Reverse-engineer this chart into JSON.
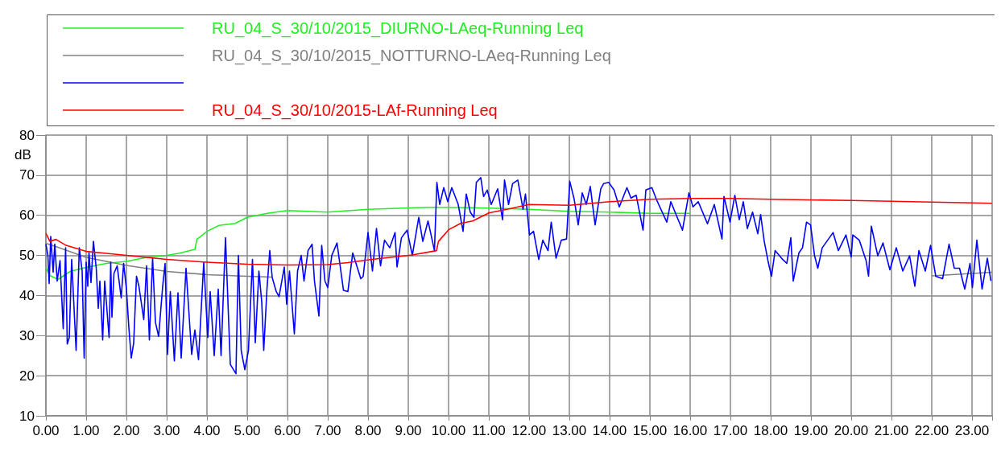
{
  "chart_data": {
    "type": "line",
    "ylabel": "dB",
    "legend": "top",
    "grid": true,
    "marker": "none",
    "line_style": "solid",
    "xlim": [
      0,
      23.5
    ],
    "ylim": [
      10,
      80
    ],
    "xticks": [
      {
        "value": 0,
        "label": "0.00"
      },
      {
        "value": 1,
        "label": "1.00"
      },
      {
        "value": 2,
        "label": "2.00"
      },
      {
        "value": 3,
        "label": "3.00"
      },
      {
        "value": 4,
        "label": "4.00"
      },
      {
        "value": 5,
        "label": "5.00"
      },
      {
        "value": 6,
        "label": "6.00"
      },
      {
        "value": 7,
        "label": "7.00"
      },
      {
        "value": 8,
        "label": "8.00"
      },
      {
        "value": 9,
        "label": "9.00"
      },
      {
        "value": 10,
        "label": "10.00"
      },
      {
        "value": 11,
        "label": "11.00"
      },
      {
        "value": 12,
        "label": "12.00"
      },
      {
        "value": 13,
        "label": "13.00"
      },
      {
        "value": 14,
        "label": "14.00"
      },
      {
        "value": 15,
        "label": "15.00"
      },
      {
        "value": 16,
        "label": "16.00"
      },
      {
        "value": 17,
        "label": "17.00"
      },
      {
        "value": 18,
        "label": "18.00"
      },
      {
        "value": 19,
        "label": "19.00"
      },
      {
        "value": 20,
        "label": "20.00"
      },
      {
        "value": 21,
        "label": "21.00"
      },
      {
        "value": 22,
        "label": "22.00"
      },
      {
        "value": 23,
        "label": "23.00"
      }
    ],
    "yticks": [
      10,
      20,
      30,
      40,
      50,
      60,
      70,
      80
    ],
    "series": [
      {
        "name": "RU_04_S_30/10/2015_DIURNO-LAeq-Running Leq",
        "color": "#22ee22",
        "x": [
          0,
          0.1,
          0.3,
          0.6,
          1,
          1.5,
          2,
          2.5,
          3,
          3.3,
          3.7,
          3.75,
          4,
          4.3,
          4.7,
          5,
          5.5,
          6,
          7,
          8,
          9.5,
          10,
          11,
          12,
          13,
          14,
          15,
          16
        ],
        "values": [
          47,
          45,
          44,
          46,
          47,
          48,
          48.5,
          49.5,
          50,
          50.5,
          51.5,
          54,
          56,
          57.5,
          58,
          59.5,
          60.5,
          61.2,
          60.8,
          61.5,
          62,
          62,
          61.8,
          61.5,
          61,
          60.8,
          60.5,
          60.5
        ]
      },
      {
        "name": "RU_04_S_30/10/2015_NOTTURNO-LAeq-Running Leq",
        "color": "#808080",
        "x": [
          0,
          0.3,
          1,
          2,
          3,
          4,
          5,
          5.6,
          5.7,
          22,
          23.5
        ],
        "values": [
          53,
          52,
          49.5,
          47.5,
          46,
          45.2,
          44.8,
          44.6,
          null,
          44.9,
          45.8
        ]
      },
      {
        "color": "#0000ff",
        "x": [
          0,
          0.05,
          0.08,
          0.12,
          0.18,
          0.22,
          0.28,
          0.35,
          0.43,
          0.49,
          0.53,
          0.58,
          0.64,
          0.75,
          0.83,
          0.9,
          0.95,
          1,
          1.04,
          1.07,
          1.12,
          1.18,
          1.25,
          1.3,
          1.34,
          1.41,
          1.46,
          1.57,
          1.61,
          1.64,
          1.69,
          1.77,
          1.87,
          1.93,
          2,
          2.06,
          2.12,
          2.18,
          2.25,
          2.31,
          2.43,
          2.5,
          2.57,
          2.65,
          2.72,
          2.8,
          2.9,
          2.96,
          3.02,
          3.09,
          3.19,
          3.28,
          3.36,
          3.48,
          3.62,
          3.7,
          3.79,
          3.92,
          4.02,
          4.08,
          4.18,
          4.28,
          4.35,
          4.46,
          4.58,
          4.72,
          4.78,
          4.85,
          4.94,
          5.03,
          5.13,
          5.2,
          5.29,
          5.36,
          5.41,
          5.49,
          5.56,
          5.62,
          5.72,
          5.79,
          5.92,
          5.98,
          6.05,
          6.17,
          6.25,
          6.34,
          6.41,
          6.51,
          6.61,
          6.67,
          6.78,
          6.85,
          6.93,
          7,
          7.1,
          7.23,
          7.39,
          7.5,
          7.62,
          7.82,
          7.88,
          8,
          8.11,
          8.21,
          8.31,
          8.41,
          8.54,
          8.67,
          8.72,
          8.83,
          8.97,
          9.1,
          9.26,
          9.36,
          9.49,
          9.65,
          9.71,
          9.78,
          9.88,
          9.98,
          10.08,
          10.24,
          10.36,
          10.44,
          10.54,
          10.63,
          10.69,
          10.8,
          10.87,
          10.96,
          11.06,
          11.22,
          11.34,
          11.39,
          11.49,
          11.59,
          11.72,
          11.85,
          11.91,
          12.01,
          12.11,
          12.24,
          12.34,
          12.47,
          12.55,
          12.67,
          12.8,
          12.93,
          13.01,
          13.12,
          13.22,
          13.32,
          13.42,
          13.52,
          13.64,
          13.78,
          13.85,
          13.98,
          14.11,
          14.24,
          14.43,
          14.53,
          14.66,
          14.83,
          14.9,
          15.05,
          15.16,
          15.42,
          15.52,
          15.65,
          15.81,
          15.97,
          16.07,
          16.2,
          16.43,
          16.6,
          16.79,
          16.84,
          16.99,
          17.11,
          17.22,
          17.32,
          17.42,
          17.55,
          17.68,
          17.75,
          17.84,
          17.94,
          18.02,
          18.11,
          18.27,
          18.4,
          18.5,
          18.56,
          18.7,
          18.79,
          18.89,
          18.99,
          19.09,
          19.17,
          19.28,
          19.55,
          19.68,
          19.87,
          20,
          20.04,
          20.2,
          20.37,
          20.43,
          20.5,
          20.66,
          20.79,
          20.96,
          21.12,
          21.28,
          21.45,
          21.58,
          21.68,
          21.84,
          21.97,
          22.1,
          22.27,
          22.43,
          22.56,
          22.69,
          22.82,
          22.95,
          23.01,
          23.12,
          23.25,
          23.38,
          23.47
        ],
        "values": [
          52.8,
          50,
          43,
          54.7,
          45.8,
          52.8,
          43.6,
          48.7,
          31.7,
          51.9,
          27.9,
          29.5,
          49,
          26.3,
          51.9,
          46.1,
          24.4,
          48.3,
          42.3,
          50.6,
          43.2,
          53.5,
          46.8,
          36.8,
          43.6,
          28.9,
          43.6,
          29.5,
          48.3,
          34.6,
          45.5,
          47.4,
          39.4,
          48,
          41.6,
          32,
          24.4,
          28.2,
          44.8,
          42.3,
          34,
          47.4,
          28.9,
          49.3,
          33.3,
          29.8,
          42.3,
          48,
          25.3,
          41,
          23.7,
          40.7,
          24.4,
          46.8,
          25.3,
          31.4,
          24,
          48.3,
          29.5,
          41,
          25,
          41.6,
          25,
          54.4,
          22.8,
          20.5,
          50,
          26.3,
          21.5,
          26.3,
          49,
          28.2,
          46.1,
          38.4,
          26.3,
          41.6,
          51.2,
          44.5,
          41,
          39.7,
          47.1,
          37.8,
          46.1,
          30.4,
          46.1,
          50,
          43.6,
          51.2,
          52.8,
          43.6,
          34.9,
          52.5,
          43.6,
          42,
          50,
          53.1,
          41.3,
          41,
          50.6,
          44.2,
          44.8,
          55.7,
          46.1,
          56.7,
          47.4,
          53.8,
          51.9,
          55.7,
          47.1,
          54.4,
          56.3,
          50,
          59.5,
          53.5,
          58.6,
          51.2,
          68.2,
          62.7,
          66.9,
          63.4,
          66.9,
          62.7,
          56,
          65.3,
          60.8,
          59.5,
          68.2,
          69.4,
          64.7,
          66.3,
          62.7,
          66.6,
          58.9,
          68.8,
          62.7,
          67.9,
          68.8,
          61.5,
          65.3,
          55.1,
          56,
          49,
          53.8,
          51.2,
          58.3,
          49.3,
          53.8,
          54.1,
          68.5,
          64,
          57.6,
          65.6,
          62.7,
          67.2,
          57.6,
          66.6,
          67.9,
          68.2,
          66.3,
          62.1,
          66.9,
          64.3,
          65,
          56.3,
          66.3,
          66.9,
          64,
          58.3,
          63.4,
          60.2,
          56.3,
          65.6,
          62.1,
          63.4,
          57.9,
          62.7,
          54.1,
          64.7,
          58.3,
          65,
          58.9,
          63.4,
          56.7,
          60.8,
          55.4,
          60.2,
          53.5,
          48.3,
          44.8,
          51.2,
          49.3,
          48,
          54.4,
          43.6,
          50.6,
          51.9,
          58.3,
          57.6,
          49.9,
          46.8,
          51.9,
          55.7,
          51.2,
          55.1,
          49.6,
          55.1,
          53.8,
          48.7,
          44.8,
          57.3,
          49.9,
          53.1,
          46.4,
          51.9,
          46.1,
          49.9,
          42.3,
          51.2,
          46.1,
          52.5,
          44.8,
          44.2,
          52.8,
          46.8,
          46.8,
          41.6,
          48,
          42,
          53.8,
          41.6,
          49.3,
          43.6
        ]
      },
      {
        "name": "RU_04_S_30/10/2015-LAf-Running Leq",
        "color": "#ff0000",
        "x": [
          0,
          0.1,
          0.25,
          0.5,
          1,
          1.5,
          2,
          3,
          4,
          5,
          6,
          7,
          7.5,
          8.1,
          9.1,
          9.7,
          9.75,
          10,
          10.3,
          10.6,
          11,
          11.5,
          12,
          13,
          14,
          15,
          16,
          17,
          18,
          20,
          22,
          23.5
        ],
        "values": [
          55.5,
          53.5,
          54,
          52.5,
          51,
          50.5,
          50,
          49,
          48.3,
          47.8,
          47.6,
          47.7,
          48.2,
          49,
          50.1,
          51.2,
          53.5,
          56.4,
          58,
          58.6,
          60.6,
          61.6,
          62.7,
          62.5,
          63.4,
          64,
          64.2,
          64.2,
          64,
          63.7,
          63.3,
          63
        ]
      }
    ]
  }
}
